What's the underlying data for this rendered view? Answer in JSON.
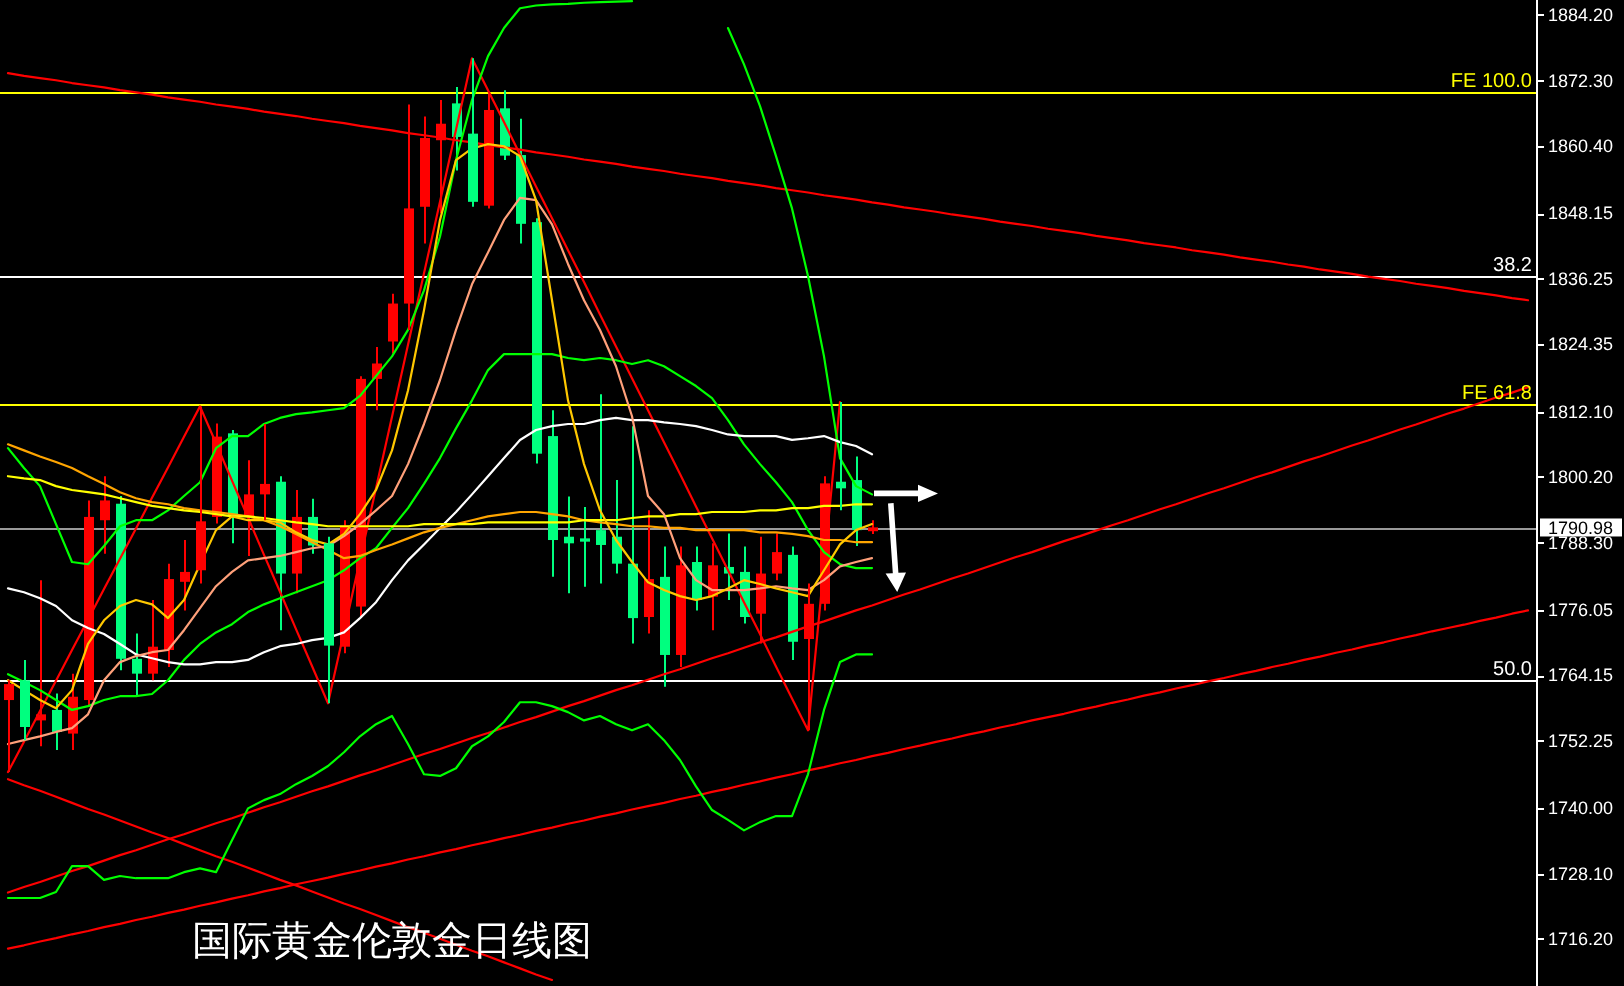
{
  "chart_data": {
    "type": "candlestick",
    "title": "国际黄金伦敦金日线图",
    "categories": [
      null,
      null,
      null,
      null,
      null,
      null,
      null,
      null,
      null,
      null,
      null,
      null,
      null,
      null,
      null,
      null,
      null,
      null,
      null,
      null,
      null,
      null,
      null,
      null,
      null,
      null,
      null,
      null,
      null,
      null,
      null,
      null,
      null,
      null,
      null,
      null,
      null,
      null,
      null,
      null,
      null,
      null,
      null,
      null,
      null,
      null,
      null,
      null,
      null,
      null,
      null,
      null,
      null,
      null,
      null,
      null,
      null,
      null,
      null,
      null,
      null,
      null,
      null,
      null,
      null,
      null,
      null,
      null,
      null,
      null,
      null,
      null,
      null,
      null,
      null,
      null,
      null,
      null,
      null,
      null,
      null,
      null,
      null,
      null,
      null,
      null,
      null,
      null,
      null,
      null,
      null,
      null,
      null,
      null,
      null,
      null
    ],
    "ohlc": [
      [
        1759.6,
        1763.2,
        1746.5,
        1762.5
      ],
      [
        1763.2,
        1766.9,
        1752.3,
        1754.7
      ],
      [
        1755.9,
        1781.4,
        1751.2,
        1757.0
      ],
      [
        1757.8,
        1760.8,
        1750.5,
        1753.8
      ],
      [
        1753.5,
        1764.4,
        1750.5,
        1760.2
      ],
      [
        1759.6,
        1795.9,
        1758.4,
        1792.9
      ],
      [
        1792.3,
        1800.3,
        1786.2,
        1795.9
      ],
      [
        1795.3,
        1796.7,
        1765.0,
        1767.1
      ],
      [
        1767.1,
        1771.7,
        1760.2,
        1764.4
      ],
      [
        1764.4,
        1777.8,
        1763.2,
        1769.3
      ],
      [
        1768.7,
        1784.4,
        1765.6,
        1781.6
      ],
      [
        1781.1,
        1788.7,
        1775.9,
        1782.9
      ],
      [
        1783.2,
        1813.0,
        1780.8,
        1792.1
      ],
      [
        1792.9,
        1809.9,
        1791.7,
        1807.5
      ],
      [
        1808.1,
        1808.7,
        1788.1,
        1792.9
      ],
      [
        1793.0,
        1803.2,
        1785.8,
        1797.0
      ],
      [
        1797.0,
        1809.8,
        1792.3,
        1798.9
      ],
      [
        1799.3,
        1800.3,
        1772.3,
        1782.6
      ],
      [
        1782.6,
        1797.8,
        1779.0,
        1792.9
      ],
      [
        1792.9,
        1796.2,
        1786.2,
        1787.7
      ],
      [
        1788.1,
        1789.3,
        1759.0,
        1769.5
      ],
      [
        1769.3,
        1792.3,
        1768.1,
        1791.3
      ],
      [
        1776.6,
        1818.5,
        1774.9,
        1818.0
      ],
      [
        1818.0,
        1823.8,
        1812.3,
        1820.8
      ],
      [
        1824.8,
        1833.5,
        1822.6,
        1831.7
      ],
      [
        1831.7,
        1867.9,
        1826.9,
        1849.0
      ],
      [
        1849.3,
        1865.7,
        1842.6,
        1861.8
      ],
      [
        1861.4,
        1868.7,
        1848.1,
        1864.4
      ],
      [
        1868.1,
        1871.1,
        1855.9,
        1862.0
      ],
      [
        1862.6,
        1876.3,
        1849.3,
        1850.2
      ],
      [
        1849.5,
        1869.9,
        1849.0,
        1866.9
      ],
      [
        1867.2,
        1870.5,
        1857.8,
        1858.6
      ],
      [
        1858.7,
        1865.3,
        1842.6,
        1846.2
      ],
      [
        1846.5,
        1847.2,
        1802.6,
        1804.4
      ],
      [
        1807.6,
        1812.3,
        1782.0,
        1788.7
      ],
      [
        1789.3,
        1796.6,
        1779.0,
        1788.1
      ],
      [
        1789.0,
        1794.7,
        1780.2,
        1788.4
      ],
      [
        1790.5,
        1815.2,
        1780.8,
        1787.8
      ],
      [
        1789.3,
        1799.6,
        1782.6,
        1784.4
      ],
      [
        1784.4,
        1809.4,
        1769.9,
        1774.5
      ],
      [
        1774.7,
        1794.1,
        1771.7,
        1781.6
      ],
      [
        1782.0,
        1787.5,
        1762.0,
        1767.8
      ],
      [
        1767.8,
        1787.5,
        1765.6,
        1784.1
      ],
      [
        1784.7,
        1787.5,
        1775.9,
        1777.8
      ],
      [
        1778.4,
        1788.1,
        1772.3,
        1784.1
      ],
      [
        1783.8,
        1789.9,
        1777.8,
        1782.6
      ],
      [
        1782.9,
        1787.5,
        1773.5,
        1774.7
      ],
      [
        1775.3,
        1789.3,
        1769.9,
        1782.6
      ],
      [
        1782.6,
        1789.9,
        1781.4,
        1786.5
      ],
      [
        1786.0,
        1787.5,
        1766.9,
        1770.2
      ],
      [
        1770.7,
        1780.8,
        1754.1,
        1777.1
      ],
      [
        1777.1,
        1800.3,
        1775.9,
        1799.0
      ],
      [
        1799.3,
        1813.8,
        1794.1,
        1798.1
      ],
      [
        1799.6,
        1803.9,
        1787.6,
        1790.5
      ],
      [
        1790.3,
        1792.3,
        1789.8,
        1791.0
      ],
      null,
      null,
      null,
      null,
      null,
      null,
      null,
      null,
      null,
      null,
      null,
      null,
      null,
      null,
      null,
      null,
      null,
      null,
      null,
      null,
      null,
      null,
      null,
      null,
      null,
      null,
      null,
      null,
      null,
      null,
      null,
      null,
      null,
      null,
      null,
      null,
      null,
      null,
      null,
      null,
      null
    ],
    "colors": [
      "#ff0000",
      "#00ff7f",
      "#ff0000",
      "#00ff7f",
      "#ff0000",
      "#ff0000",
      "#ff0000",
      "#00ff7f",
      "#00ff7f",
      "#ff0000",
      "#ff0000",
      "#ff0000",
      "#ff0000",
      "#ff0000",
      "#00ff7f",
      "#ff0000",
      "#ff0000",
      "#00ff7f",
      "#ff0000",
      "#00ff7f",
      "#00ff7f",
      "#ff0000",
      "#ff0000",
      "#ff0000",
      "#ff0000",
      "#ff0000",
      "#ff0000",
      "#ff0000",
      "#00ff7f",
      "#00ff7f",
      "#ff0000",
      "#00ff7f",
      "#00ff7f",
      "#00ff7f",
      "#00ff7f",
      "#00ff7f",
      "#00ff7f",
      "#00ff7f",
      "#00ff7f",
      "#00ff7f",
      "#ff0000",
      "#00ff7f",
      "#ff0000",
      "#00ff7f",
      "#ff0000",
      "#00ff7f",
      "#00ff7f",
      "#ff0000",
      "#ff0000",
      "#00ff7f",
      "#ff0000",
      "#ff0000",
      "#00ff7f",
      "#00ff7f",
      "#ff0000",
      null,
      null,
      null,
      null,
      null,
      null,
      null,
      null,
      null,
      null,
      null,
      null,
      null,
      null,
      null,
      null,
      null,
      null,
      null,
      null,
      null,
      null,
      null,
      null,
      null,
      null,
      null,
      null,
      null,
      null,
      null,
      null,
      null,
      null,
      null,
      null,
      null,
      null,
      null,
      null,
      null
    ],
    "series": [
      {
        "type": "line",
        "color": "#ff0000",
        "values": [
          1873.6,
          1873.1,
          1872.7,
          1872.3,
          1871.8,
          1871.4,
          1871.0,
          1870.5,
          1870.1,
          1869.7,
          1869.2,
          1868.8,
          1868.4,
          1867.9,
          1867.5,
          1867.1,
          1866.6,
          1866.2,
          1865.8,
          1865.3,
          1864.9,
          1864.5,
          1864.0,
          1863.6,
          1863.2,
          1862.7,
          1862.3,
          1861.9,
          1861.4,
          1861.0,
          1860.5,
          1860.1,
          1859.7,
          1859.2,
          1858.8,
          1858.4,
          1857.9,
          1857.5,
          1857.1,
          1856.6,
          1856.2,
          1855.8,
          1855.3,
          1854.9,
          1854.5,
          1854.0,
          1853.6,
          1853.2,
          1852.7,
          1852.3,
          1851.9,
          1851.4,
          1851.0,
          1850.6,
          1850.1,
          1849.7,
          1849.2,
          1848.8,
          1848.4,
          1847.9,
          1847.5,
          1847.1,
          1846.6,
          1846.2,
          1845.8,
          1845.3,
          1844.9,
          1844.5,
          1844.0,
          1843.6,
          1843.2,
          1842.7,
          1842.3,
          1841.9,
          1841.4,
          1841.0,
          1840.6,
          1840.1,
          1839.7,
          1839.3,
          1838.8,
          1838.4,
          1837.9,
          1837.5,
          1837.1,
          1836.6,
          1836.2,
          1835.8,
          1835.3,
          1834.9,
          1834.5,
          1834.0,
          1833.6,
          1833.2,
          1832.7,
          1832.3
        ]
      },
      {
        "type": "line",
        "color": "#ff0000",
        "values": [
          1724.6,
          1725.6,
          1726.5,
          1727.5,
          1728.5,
          1729.4,
          1730.4,
          1731.4,
          1732.3,
          1733.3,
          1734.3,
          1735.2,
          1736.2,
          1737.2,
          1738.1,
          1739.1,
          1740.1,
          1741.0,
          1742.0,
          1743.0,
          1743.9,
          1744.9,
          1745.9,
          1746.8,
          1747.8,
          1748.8,
          1749.8,
          1750.7,
          1751.7,
          1752.7,
          1753.6,
          1754.6,
          1755.6,
          1756.5,
          1757.5,
          1758.5,
          1759.4,
          1760.4,
          1761.4,
          1762.3,
          1763.3,
          1764.3,
          1765.2,
          1766.2,
          1767.2,
          1768.1,
          1769.1,
          1770.1,
          1771.0,
          1772.0,
          1773.0,
          1773.9,
          1774.9,
          1775.9,
          1776.8,
          1777.8,
          1778.8,
          1779.7,
          1780.7,
          1781.7,
          1782.6,
          1783.6,
          1784.6,
          1785.6,
          1786.5,
          1787.5,
          1788.5,
          1789.4,
          1790.4,
          1791.4,
          1792.3,
          1793.3,
          1794.3,
          1795.2,
          1796.2,
          1797.2,
          1798.1,
          1799.1,
          1800.1,
          1801.0,
          1802.0,
          1803.0,
          1803.9,
          1804.9,
          1805.9,
          1806.8,
          1807.8,
          1808.8,
          1809.7,
          1810.7,
          1811.7,
          1812.6,
          1813.6,
          1814.6,
          1815.5,
          1816.5
        ]
      },
      {
        "type": "line",
        "color": "#ff0000",
        "values": [
          1714.4,
          1715.0,
          1715.7,
          1716.3,
          1717.0,
          1717.6,
          1718.3,
          1718.9,
          1719.6,
          1720.2,
          1720.9,
          1721.5,
          1722.2,
          1722.8,
          1723.5,
          1724.1,
          1724.8,
          1725.4,
          1726.1,
          1726.7,
          1727.3,
          1728.0,
          1728.6,
          1729.3,
          1729.9,
          1730.6,
          1731.2,
          1731.9,
          1732.5,
          1733.2,
          1733.8,
          1734.5,
          1735.1,
          1735.8,
          1736.4,
          1737.1,
          1737.7,
          1738.4,
          1739.0,
          1739.7,
          1740.3,
          1740.9,
          1741.6,
          1742.2,
          1742.9,
          1743.5,
          1744.2,
          1744.8,
          1745.5,
          1746.1,
          1746.8,
          1747.4,
          1748.1,
          1748.7,
          1749.4,
          1750.0,
          1750.7,
          1751.3,
          1752.0,
          1752.6,
          1753.3,
          1753.9,
          1754.6,
          1755.2,
          1755.9,
          1756.5,
          1757.1,
          1757.8,
          1758.4,
          1759.1,
          1759.7,
          1760.4,
          1761.0,
          1761.7,
          1762.3,
          1763.0,
          1763.6,
          1764.3,
          1764.9,
          1765.6,
          1766.2,
          1766.9,
          1767.5,
          1768.2,
          1768.8,
          1769.5,
          1770.1,
          1770.8,
          1771.4,
          1772.1,
          1772.7,
          1773.3,
          1774.0,
          1774.6,
          1775.3,
          1775.9
        ]
      },
      {
        "type": "line",
        "color": "#ff0000",
        "values": [
          1745.2,
          1744.1,
          1743.1,
          1742.0,
          1740.9,
          1739.8,
          1738.8,
          1737.7,
          1736.6,
          1735.5,
          1734.5,
          1733.4,
          1732.3,
          1731.2,
          1730.2,
          1729.1,
          1728.0,
          1726.9,
          1725.9,
          1724.8,
          1723.7,
          1722.6,
          1721.6,
          1720.5,
          1719.4,
          1718.3,
          1717.3,
          1716.2,
          1715.1,
          1714.0,
          1713.0,
          1711.9,
          1710.8,
          1709.7,
          1708.7,
          null,
          null,
          null,
          null,
          null,
          null,
          null,
          null,
          null,
          null,
          null,
          null,
          null,
          null,
          null,
          null,
          null,
          null,
          null,
          null,
          null,
          null,
          null,
          null,
          null,
          null,
          null,
          null,
          null,
          null,
          null,
          null,
          null,
          null,
          null,
          null,
          null,
          null,
          null,
          null,
          null,
          null,
          null,
          null,
          null,
          null,
          null,
          null,
          null,
          null,
          null,
          null,
          null,
          null,
          null,
          null,
          null,
          null,
          null,
          null,
          null
        ]
      },
      {
        "type": "line",
        "color": "#ff0000",
        "values": [
          1746.5,
          1752.0,
          1757.6,
          1763.1,
          1768.7,
          1774.2,
          1779.8,
          1785.3,
          1790.8,
          1796.4,
          1801.9,
          1807.5,
          1813.0,
          1806.3,
          1799.5,
          1792.8,
          1786.0,
          1779.3,
          1772.5,
          1765.8,
          1759.0,
          1772.0,
          1785.1,
          1798.1,
          1811.1,
          1824.2,
          1837.2,
          1850.2,
          1863.3,
          1876.3,
          1870.5,
          1864.7,
          1858.8,
          1853.0,
          1847.2,
          1841.4,
          1835.6,
          1829.7,
          1823.9,
          1818.1,
          1812.3,
          1806.5,
          1800.7,
          1794.8,
          1789.0,
          1783.2,
          1777.4,
          1771.6,
          1765.7,
          1759.9,
          1754.1,
          1784.0,
          1813.8,
          null,
          null,
          null,
          null,
          null,
          null,
          null,
          null,
          null,
          null,
          null,
          null,
          null,
          null,
          null,
          null,
          null,
          null,
          null,
          null,
          null,
          null,
          null,
          null,
          null,
          null,
          null,
          null,
          null,
          null,
          null,
          null,
          null,
          null,
          null,
          null,
          null,
          null,
          null,
          null,
          null,
          null,
          null
        ]
      },
      {
        "type": "line",
        "color": "#00ff00",
        "values": [
          1805.4,
          1801.8,
          1798.5,
          1791.6,
          1784.7,
          1784.3,
          1787.6,
          1791.2,
          1792.3,
          1792.3,
          1794.1,
          1796.7,
          1799.2,
          1805.4,
          1807.6,
          1807.6,
          1809.8,
          1810.9,
          1811.6,
          1811.9,
          1812.3,
          1812.7,
          1814.9,
          1818.5,
          1822.1,
          1826.9,
          1834.1,
          1843.9,
          1857.8,
          1868.7,
          1876.7,
          1881.8,
          1885.4,
          1885.9,
          1886.1,
          1886.2,
          1886.4,
          1886.5,
          1886.6,
          1886.7,
          null,
          null,
          null,
          null,
          null,
          1881.8,
          1875.2,
          1867.6,
          1858.5,
          1849.0,
          1836.7,
          1822.1,
          1803.6,
          1798.5,
          1797.0,
          null,
          null,
          null,
          null,
          null,
          null,
          null,
          null,
          null,
          null,
          null,
          null,
          null,
          null,
          null,
          null,
          null,
          null,
          null,
          null,
          null,
          null,
          null,
          null,
          null,
          null,
          null,
          null,
          null,
          null,
          null,
          null,
          null,
          null,
          null,
          null,
          null,
          null,
          null,
          null,
          null
        ]
      },
      {
        "type": "line",
        "color": "#00ff00",
        "values": [
          1723.6,
          1723.6,
          1723.6,
          1724.7,
          1729.4,
          1729.4,
          1726.9,
          1727.6,
          1727.2,
          1727.2,
          1727.2,
          1728.3,
          1729.0,
          1728.3,
          1734.1,
          1739.9,
          1741.4,
          1742.5,
          1744.3,
          1745.8,
          1747.6,
          1750.1,
          1753.0,
          1755.2,
          1756.7,
          1751.6,
          1746.1,
          1745.8,
          1747.2,
          1751.2,
          1753.0,
          1755.6,
          1759.2,
          1759.2,
          1758.5,
          1757.4,
          1755.9,
          1756.7,
          1755.2,
          1754.1,
          1755.2,
          1752.3,
          1748.7,
          1743.9,
          1739.6,
          1737.8,
          1735.9,
          1737.4,
          1738.5,
          1738.5,
          1746.1,
          1757.8,
          1766.5,
          1767.9,
          1767.9,
          null,
          null,
          null,
          null,
          null,
          null,
          null,
          null,
          null,
          null,
          null,
          null,
          null,
          null,
          null,
          null,
          null,
          null,
          null,
          null,
          null,
          null,
          null,
          null,
          null,
          null,
          null,
          null,
          null,
          null,
          null,
          null,
          null,
          null,
          null,
          null,
          null,
          null,
          null,
          null,
          null
        ]
      },
      {
        "type": "line",
        "color": "#00ff00",
        "values": [
          1764.3,
          1762.9,
          1761.4,
          1759.6,
          1757.8,
          1758.5,
          1759.6,
          1760.3,
          1760.3,
          1760.7,
          1763.2,
          1766.9,
          1769.8,
          1771.9,
          1773.4,
          1775.6,
          1777.0,
          1778.1,
          1779.2,
          1780.3,
          1781.4,
          1783.2,
          1785.4,
          1787.2,
          1790.9,
          1794.5,
          1798.9,
          1803.6,
          1809.0,
          1814.1,
          1819.6,
          1822.5,
          1822.5,
          1822.5,
          1822.5,
          1821.8,
          1821.4,
          1821.8,
          1821.4,
          1820.7,
          1821.4,
          1820.3,
          1818.5,
          1816.7,
          1814.5,
          1810.5,
          1806.1,
          1802.5,
          1799.2,
          1795.6,
          1790.5,
          1786.5,
          1784.3,
          1783.6,
          1783.6,
          null,
          null,
          null,
          null,
          null,
          null,
          null,
          null,
          null,
          null,
          null,
          null,
          null,
          null,
          null,
          null,
          null,
          null,
          null,
          null,
          null,
          null,
          null,
          null,
          null,
          null,
          null,
          null,
          null,
          null,
          null,
          null,
          null,
          null,
          null,
          null,
          null,
          null,
          null,
          null,
          null
        ]
      },
      {
        "type": "line",
        "color": "#ffffff",
        "values": [
          1779.9,
          1779.2,
          1778.1,
          1776.7,
          1774.1,
          1772.7,
          1771.6,
          1769.8,
          1767.9,
          1767.2,
          1766.5,
          1766.1,
          1766.1,
          1766.5,
          1766.5,
          1766.9,
          1768.3,
          1769.4,
          1769.8,
          1770.5,
          1770.9,
          1771.9,
          1774.5,
          1777.4,
          1781.4,
          1785.0,
          1787.9,
          1790.9,
          1793.8,
          1797.0,
          1800.3,
          1803.6,
          1806.9,
          1808.7,
          1809.4,
          1809.8,
          1809.8,
          1810.5,
          1810.9,
          1810.5,
          1810.5,
          1810.1,
          1809.8,
          1809.4,
          1808.7,
          1807.9,
          1807.6,
          1807.6,
          1807.6,
          1806.9,
          1807.2,
          1807.6,
          1806.5,
          1805.8,
          1804.3,
          null,
          null,
          null,
          null,
          null,
          null,
          null,
          null,
          null,
          null,
          null,
          null,
          null,
          null,
          null,
          null,
          null,
          null,
          null,
          null,
          null,
          null,
          null,
          null,
          null,
          null,
          null,
          null,
          null,
          null,
          null,
          null,
          null,
          null,
          null,
          null,
          null,
          null,
          null,
          null,
          null
        ]
      },
      {
        "type": "line",
        "color": "#ffa500",
        "values": [
          1806.1,
          1805.0,
          1803.9,
          1802.9,
          1801.8,
          1800.3,
          1798.9,
          1797.4,
          1796.3,
          1795.6,
          1795.2,
          1794.5,
          1794.1,
          1793.8,
          1793.4,
          1793.0,
          1792.3,
          1791.2,
          1789.8,
          1788.3,
          1786.9,
          1785.4,
          1785.8,
          1786.9,
          1787.9,
          1789.0,
          1790.1,
          1790.9,
          1791.6,
          1792.3,
          1793.0,
          1793.4,
          1793.8,
          1793.8,
          1793.4,
          1793.0,
          1792.3,
          1791.9,
          1791.6,
          1791.2,
          1791.2,
          1790.9,
          1790.9,
          1790.5,
          1790.5,
          1790.5,
          1790.5,
          1790.1,
          1790.1,
          1789.8,
          1789.4,
          1788.7,
          1788.7,
          1788.3,
          1788.3,
          null,
          null,
          null,
          null,
          null,
          null,
          null,
          null,
          null,
          null,
          null,
          null,
          null,
          null,
          null,
          null,
          null,
          null,
          null,
          null,
          null,
          null,
          null,
          null,
          null,
          null,
          null,
          null,
          null,
          null,
          null,
          null,
          null,
          null,
          null,
          null,
          null,
          null,
          null,
          null,
          null
        ]
      },
      {
        "type": "line",
        "color": "#ffff00",
        "values": [
          1800.3,
          1799.9,
          1799.6,
          1798.5,
          1797.8,
          1797.4,
          1797.0,
          1796.3,
          1795.6,
          1794.9,
          1794.5,
          1794.1,
          1793.8,
          1793.4,
          1793.0,
          1793.0,
          1792.7,
          1792.3,
          1791.9,
          1791.6,
          1791.2,
          1791.2,
          1791.2,
          1791.2,
          1791.2,
          1791.2,
          1791.6,
          1791.6,
          1791.6,
          1791.6,
          1791.9,
          1791.9,
          1791.9,
          1791.9,
          1791.9,
          1791.9,
          1792.3,
          1792.3,
          1792.3,
          1792.7,
          1793.0,
          1793.0,
          1793.4,
          1793.4,
          1793.8,
          1793.8,
          1793.8,
          1794.1,
          1794.1,
          1794.5,
          1794.5,
          1794.9,
          1794.9,
          1795.2,
          1795.2,
          null,
          null,
          null,
          null,
          null,
          null,
          null,
          null,
          null,
          null,
          null,
          null,
          null,
          null,
          null,
          null,
          null,
          null,
          null,
          null,
          null,
          null,
          null,
          null,
          null,
          null,
          null,
          null,
          null,
          null,
          null,
          null,
          null,
          null,
          null,
          null,
          null,
          null,
          null,
          null,
          null
        ]
      },
      {
        "type": "line",
        "color": "#ffa07a",
        "values": [
          1751.6,
          1752.3,
          1753.0,
          1753.8,
          1754.5,
          1757.0,
          1763.2,
          1766.5,
          1767.6,
          1768.3,
          1768.7,
          1772.3,
          1776.3,
          1780.3,
          1782.9,
          1785.0,
          1785.4,
          1785.8,
          1786.5,
          1787.2,
          1787.6,
          1789.4,
          1791.6,
          1794.1,
          1796.7,
          1802.5,
          1809.8,
          1817.8,
          1826.9,
          1835.2,
          1841.0,
          1846.9,
          1850.9,
          1850.5,
          1846.1,
          1838.9,
          1832.3,
          1826.9,
          1820.3,
          1811.2,
          1796.7,
          1793.4,
          1785.4,
          1781.4,
          1779.6,
          1779.6,
          1779.6,
          1779.9,
          1780.3,
          1779.9,
          1779.6,
          1781.4,
          1783.9,
          1784.7,
          1785.4,
          null,
          null,
          null,
          null,
          null,
          null,
          null,
          null,
          null,
          null,
          null,
          null,
          null,
          null,
          null,
          null,
          null,
          null,
          null,
          null,
          null,
          null,
          null,
          null,
          null,
          null,
          null,
          null,
          null,
          null,
          null,
          null,
          null,
          null,
          null,
          null,
          null,
          null,
          null,
          null,
          null
        ]
      },
      {
        "type": "line",
        "color": "#ffc800",
        "values": [
          1763.2,
          1761.4,
          1759.6,
          1758.1,
          1761.4,
          1769.8,
          1774.1,
          1776.7,
          1777.8,
          1777.0,
          1774.5,
          1777.8,
          1784.3,
          1790.5,
          1793.0,
          1792.3,
          1792.3,
          1791.9,
          1790.1,
          1788.7,
          1787.9,
          1789.8,
          1793.4,
          1797.8,
          1805.0,
          1815.9,
          1830.5,
          1846.9,
          1857.8,
          1859.9,
          1860.7,
          1860.3,
          1858.5,
          1850.5,
          1832.3,
          1814.1,
          1802.5,
          1794.1,
          1788.7,
          1784.7,
          1781.0,
          1779.6,
          1778.5,
          1777.8,
          1778.5,
          1779.9,
          1781.4,
          1780.7,
          1779.9,
          1779.2,
          1778.5,
          1783.2,
          1787.9,
          1790.5,
          1791.6,
          null,
          null,
          null,
          null,
          null,
          null,
          null,
          null,
          null,
          null,
          null,
          null,
          null,
          null,
          null,
          null,
          null,
          null,
          null,
          null,
          null,
          null,
          null,
          null,
          null,
          null,
          null,
          null,
          null,
          null,
          null,
          null,
          null,
          null,
          null,
          null,
          null,
          null,
          null,
          null,
          null
        ]
      }
    ],
    "ref_lines": [
      {
        "axis": "y",
        "value": 1870.1,
        "label": "FE 100.0",
        "color": "#ffff00"
      },
      {
        "axis": "y",
        "value": 1836.7,
        "color": "#ffffff"
      },
      {
        "axis": "y",
        "value": 1813.3,
        "label": "FE 61.8",
        "color": "#ffff00"
      },
      {
        "axis": "y",
        "value": 1763.2,
        "color": "#ffffff"
      },
      {
        "axis": "y",
        "value": 1790.98,
        "color": "#9a9a9a"
      }
    ],
    "annotations": [
      {
        "text": "38.2",
        "y": 1836.7
      },
      {
        "text": "50.0",
        "y": 1763.2
      }
    ],
    "ylim": [
      1707.6,
      1886.9
    ],
    "yticks": [
      {
        "value": 1884.2,
        "label": "1884.20"
      },
      {
        "value": 1872.3,
        "label": "1872.30"
      },
      {
        "value": 1860.4,
        "label": "1860.40"
      },
      {
        "value": 1848.15,
        "label": "1848.15"
      },
      {
        "value": 1836.25,
        "label": "1836.25"
      },
      {
        "value": 1824.35,
        "label": "1824.35"
      },
      {
        "value": 1812.1,
        "label": "1812.10"
      },
      {
        "value": 1800.2,
        "label": "1800.20"
      },
      {
        "value": 1788.3,
        "label": "1788.30"
      },
      {
        "value": 1776.05,
        "label": "1776.05"
      },
      {
        "value": 1764.15,
        "label": "1764.15"
      },
      {
        "value": 1752.25,
        "label": "1752.25"
      },
      {
        "value": 1740,
        "label": "1740.00"
      },
      {
        "value": 1728.1,
        "label": "1728.10"
      },
      {
        "value": 1716.2,
        "label": "1716.20"
      },
      {
        "value": 1790.98,
        "label": "1790.98"
      }
    ],
    "tick_labels": "y"
  }
}
